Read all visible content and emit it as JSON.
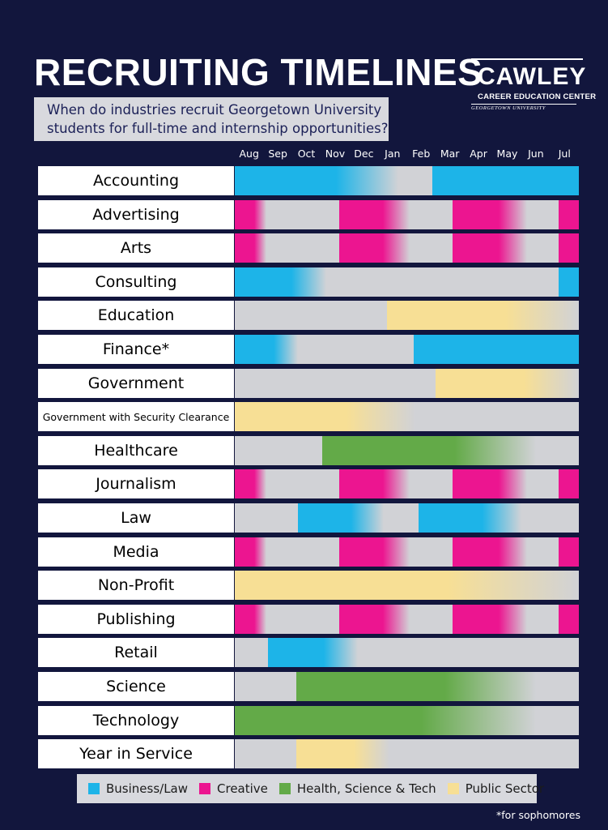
{
  "title": "RECRUITING TIMELINES",
  "subtitle": "When do industries recruit Georgetown University students for full-time and internship opportunities?",
  "logo": {
    "name": "CAWLEY",
    "subtitle": "CAREER EDUCATION CENTER",
    "university": "GEORGETOWN UNIVERSITY"
  },
  "footnote": "*for sophomores",
  "colors": {
    "background": "#12163d",
    "empty": "#d1d2d6",
    "business_law": "#1db4e8",
    "creative": "#ec1590",
    "health_science_tech": "#63aa48",
    "public_sector": "#f7df95"
  },
  "chart_data": {
    "type": "table",
    "title": "RECRUITING TIMELINES",
    "x_months": [
      "Aug",
      "Sep",
      "Oct",
      "Nov",
      "Dec",
      "Jan",
      "Feb",
      "Mar",
      "Apr",
      "May",
      "Jun",
      "Jul"
    ],
    "x_range": [
      0,
      12
    ],
    "legend": [
      {
        "key": "business_law",
        "name": "Business/Law",
        "color": "#1db4e8"
      },
      {
        "key": "creative",
        "name": "Creative",
        "color": "#ec1590"
      },
      {
        "key": "health_science_tech",
        "name": "Health, Science & Tech",
        "color": "#63aa48"
      },
      {
        "key": "public_sector",
        "name": "Public Sector",
        "color": "#f7df95"
      }
    ],
    "legend_placement": "bottom",
    "rows": [
      {
        "label": "Accounting",
        "segments": [
          {
            "category": "business_law",
            "start": 0,
            "end": 5.7,
            "fade": "right"
          },
          {
            "category": "business_law",
            "start": 6.9,
            "end": 12,
            "fade": "none"
          }
        ]
      },
      {
        "label": "Advertising",
        "segments": [
          {
            "category": "creative",
            "start": 0,
            "end": 1.1,
            "fade": "right"
          },
          {
            "category": "creative",
            "start": 3.65,
            "end": 6.1,
            "fade": "right"
          },
          {
            "category": "creative",
            "start": 7.6,
            "end": 10.2,
            "fade": "right"
          },
          {
            "category": "creative",
            "start": 11.3,
            "end": 12,
            "fade": "none"
          }
        ]
      },
      {
        "label": "Arts",
        "segments": [
          {
            "category": "creative",
            "start": 0,
            "end": 1.1,
            "fade": "right"
          },
          {
            "category": "creative",
            "start": 3.65,
            "end": 6.1,
            "fade": "right"
          },
          {
            "category": "creative",
            "start": 7.6,
            "end": 10.2,
            "fade": "right"
          },
          {
            "category": "creative",
            "start": 11.3,
            "end": 12,
            "fade": "none"
          }
        ]
      },
      {
        "label": "Consulting",
        "segments": [
          {
            "category": "business_law",
            "start": 0,
            "end": 3.2,
            "fade": "right"
          },
          {
            "category": "business_law",
            "start": 11.3,
            "end": 12,
            "fade": "none"
          }
        ]
      },
      {
        "label": "Education",
        "segments": [
          {
            "category": "public_sector",
            "start": 5.3,
            "end": 12,
            "fade": "right"
          }
        ]
      },
      {
        "label": "Finance*",
        "segments": [
          {
            "category": "business_law",
            "start": 0,
            "end": 2.2,
            "fade": "right"
          },
          {
            "category": "business_law",
            "start": 6.25,
            "end": 12,
            "fade": "none"
          }
        ]
      },
      {
        "label": "Government",
        "segments": [
          {
            "category": "public_sector",
            "start": 7.0,
            "end": 12,
            "fade": "right"
          }
        ]
      },
      {
        "label": "Government with Security Clearance",
        "segments": [
          {
            "category": "public_sector",
            "start": 0,
            "end": 6.3,
            "fade": "right"
          }
        ]
      },
      {
        "label": "Healthcare",
        "segments": [
          {
            "category": "health_science_tech",
            "start": 3.05,
            "end": 10.5,
            "fade": "right"
          }
        ]
      },
      {
        "label": "Journalism",
        "segments": [
          {
            "category": "creative",
            "start": 0,
            "end": 1.1,
            "fade": "right"
          },
          {
            "category": "creative",
            "start": 3.65,
            "end": 6.1,
            "fade": "right"
          },
          {
            "category": "creative",
            "start": 7.6,
            "end": 10.2,
            "fade": "right"
          },
          {
            "category": "creative",
            "start": 11.3,
            "end": 12,
            "fade": "none"
          }
        ]
      },
      {
        "label": "Law",
        "segments": [
          {
            "category": "business_law",
            "start": 2.2,
            "end": 5.2,
            "fade": "right"
          },
          {
            "category": "business_law",
            "start": 6.4,
            "end": 10.0,
            "fade": "right"
          }
        ]
      },
      {
        "label": "Media",
        "segments": [
          {
            "category": "creative",
            "start": 0,
            "end": 1.1,
            "fade": "right"
          },
          {
            "category": "creative",
            "start": 3.65,
            "end": 6.1,
            "fade": "right"
          },
          {
            "category": "creative",
            "start": 7.6,
            "end": 10.2,
            "fade": "right"
          },
          {
            "category": "creative",
            "start": 11.3,
            "end": 12,
            "fade": "none"
          }
        ]
      },
      {
        "label": "Non-Profit",
        "segments": [
          {
            "category": "public_sector",
            "start": 0,
            "end": 12,
            "fade": "right"
          }
        ]
      },
      {
        "label": "Publishing",
        "segments": [
          {
            "category": "creative",
            "start": 0,
            "end": 1.1,
            "fade": "right"
          },
          {
            "category": "creative",
            "start": 3.65,
            "end": 6.1,
            "fade": "right"
          },
          {
            "category": "creative",
            "start": 7.6,
            "end": 10.2,
            "fade": "right"
          },
          {
            "category": "creative",
            "start": 11.3,
            "end": 12,
            "fade": "none"
          }
        ]
      },
      {
        "label": "Retail",
        "segments": [
          {
            "category": "business_law",
            "start": 1.15,
            "end": 4.3,
            "fade": "right"
          }
        ]
      },
      {
        "label": "Science",
        "segments": [
          {
            "category": "health_science_tech",
            "start": 2.15,
            "end": 10.5,
            "fade": "right"
          }
        ]
      },
      {
        "label": "Technology",
        "segments": [
          {
            "category": "health_science_tech",
            "start": 0,
            "end": 10.5,
            "fade": "right"
          }
        ]
      },
      {
        "label": "Year in Service",
        "segments": [
          {
            "category": "public_sector",
            "start": 2.15,
            "end": 5.4,
            "fade": "right"
          }
        ]
      }
    ]
  }
}
